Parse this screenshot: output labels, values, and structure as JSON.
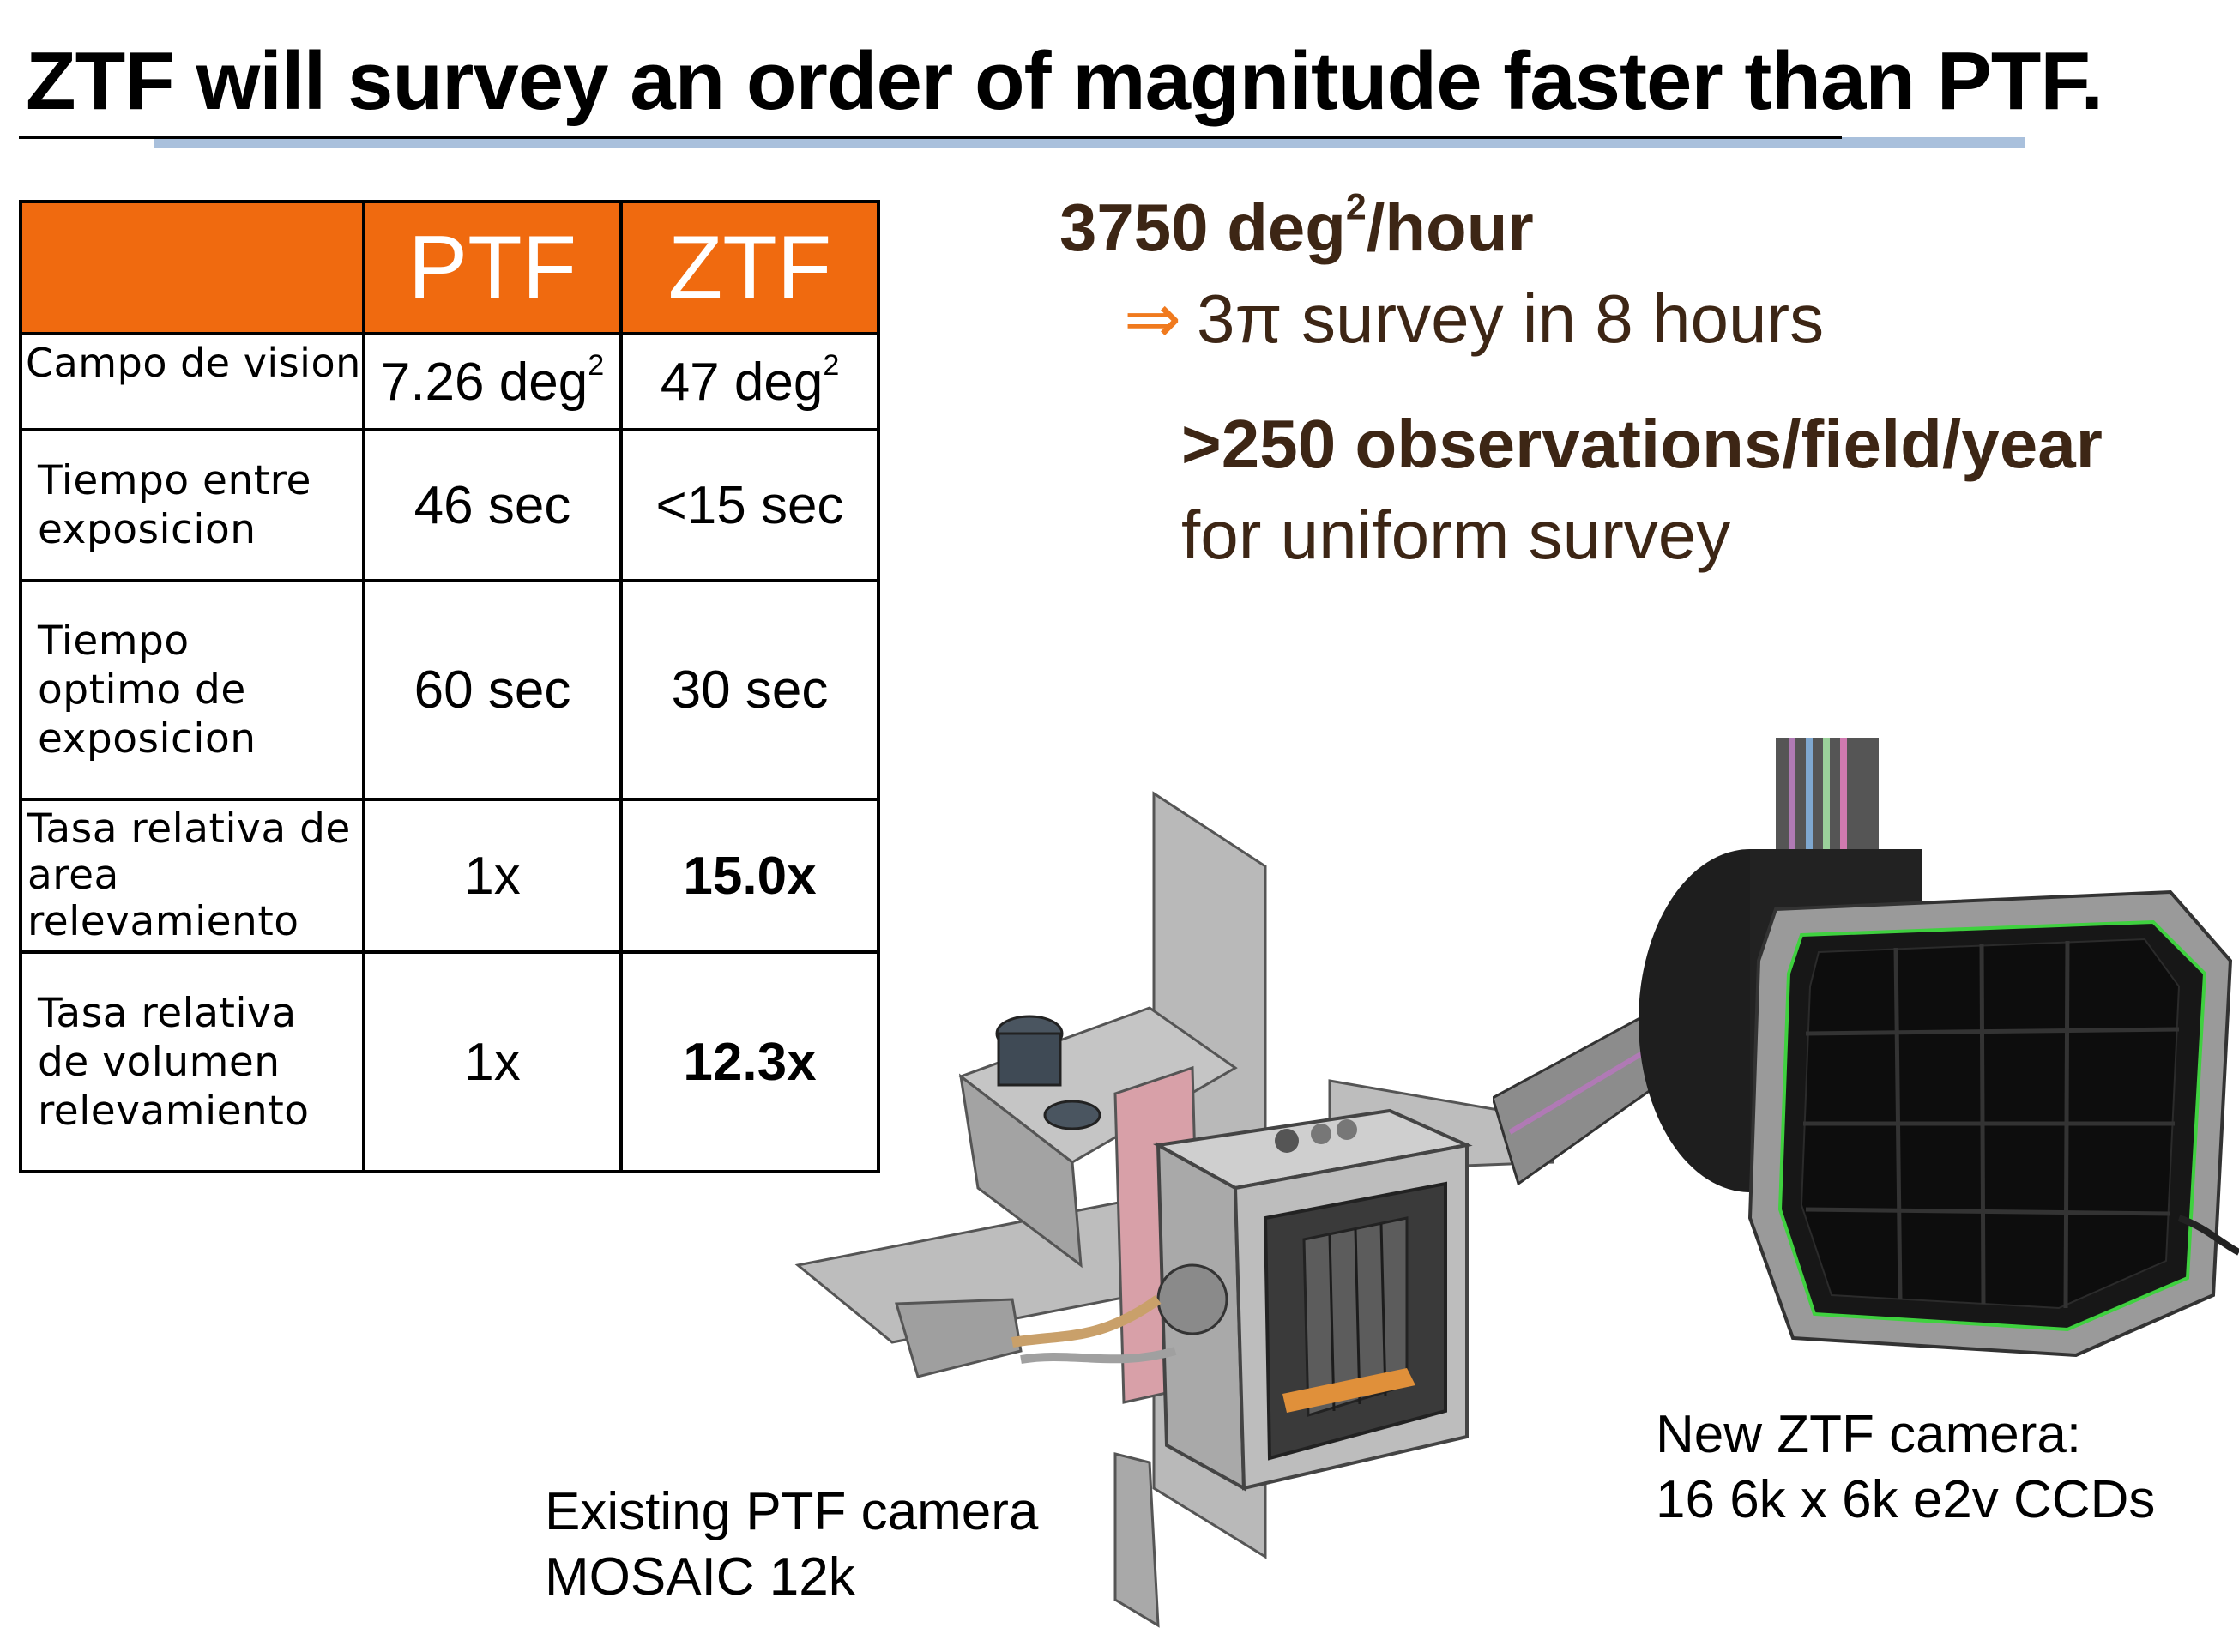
{
  "title": "ZTF will survey an order of magnitude faster than PTF.",
  "colors": {
    "table_header": "#f06a0f",
    "accent_text": "#3d2615",
    "arrow": "#f07a1e",
    "blue_rule": "#a9c0dc"
  },
  "table": {
    "headers": [
      "",
      "PTF",
      "ZTF"
    ],
    "rows": [
      {
        "label": "Campo de vision",
        "ptf": "7.26 deg",
        "ptf_sup": "2",
        "ztf": "47 deg",
        "ztf_sup": "2"
      },
      {
        "label_lines": [
          "Tiempo entre",
          "exposicion"
        ],
        "ptf": "46 sec",
        "ztf": "<15 sec"
      },
      {
        "label_lines": [
          "Tiempo",
          "optimo de",
          "exposicion"
        ],
        "ptf": "60 sec",
        "ztf": "30 sec"
      },
      {
        "label_lines": [
          "Tasa relativa de",
          "area",
          "relevamiento"
        ],
        "ptf": "1x",
        "ztf": "15.0x"
      },
      {
        "label_lines": [
          "Tasa relativa",
          "de volumen",
          "relevamiento"
        ],
        "ptf": "1x",
        "ztf": "12.3x"
      }
    ]
  },
  "rate": {
    "value": "3750 deg",
    "sup": "2",
    "unit": "/hour"
  },
  "implication": {
    "arrow": "⇒",
    "text": "3π survey in 8 hours"
  },
  "observations": {
    "bold": ">250 observations/field/year",
    "normal": "for uniform survey"
  },
  "captions": {
    "ptf": [
      "Existing PTF camera",
      "MOSAIC 12k"
    ],
    "ztf": [
      "New ZTF camera:",
      "16 6k x 6k e2v CCDs"
    ]
  }
}
